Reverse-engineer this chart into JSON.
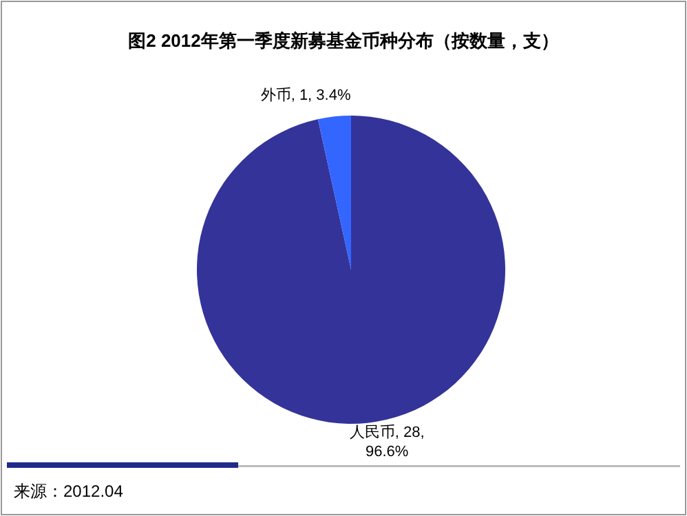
{
  "chart_data": {
    "type": "pie",
    "title": "图2  2012年第一季度新募基金币种分布（按数量，支）",
    "categories": [
      "人民币",
      "外币"
    ],
    "values": [
      28,
      1
    ],
    "colors": [
      "#333399",
      "#3366ff"
    ],
    "value_labels": [
      "28, 96.6%",
      "1, 3.4%"
    ],
    "annotations": [
      "来源：2012.04"
    ]
  }
}
